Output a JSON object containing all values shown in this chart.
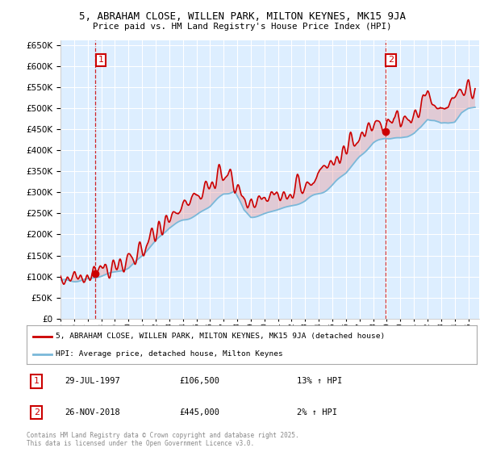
{
  "title_line1": "5, ABRAHAM CLOSE, WILLEN PARK, MILTON KEYNES, MK15 9JA",
  "title_line2": "Price paid vs. HM Land Registry's House Price Index (HPI)",
  "legend_label1": "5, ABRAHAM CLOSE, WILLEN PARK, MILTON KEYNES, MK15 9JA (detached house)",
  "legend_label2": "HPI: Average price, detached house, Milton Keynes",
  "annotation1_date": "29-JUL-1997",
  "annotation1_price": "£106,500",
  "annotation1_hpi": "13% ↑ HPI",
  "annotation2_date": "26-NOV-2018",
  "annotation2_price": "£445,000",
  "annotation2_hpi": "2% ↑ HPI",
  "copyright": "Contains HM Land Registry data © Crown copyright and database right 2025.\nThis data is licensed under the Open Government Licence v3.0.",
  "red_color": "#cc0000",
  "blue_color": "#7ab8d9",
  "fill_red": "#e88888",
  "fill_blue": "#aed4ee",
  "background_color": "#ddeeff",
  "plot_bg": "#ffffff",
  "ylim": [
    0,
    660000
  ],
  "yticks": [
    0,
    50000,
    100000,
    150000,
    200000,
    250000,
    300000,
    350000,
    400000,
    450000,
    500000,
    550000,
    600000,
    650000
  ],
  "sale1_year": 1997.57,
  "sale1_price": 106500,
  "sale2_year": 2018.9,
  "sale2_price": 445000
}
